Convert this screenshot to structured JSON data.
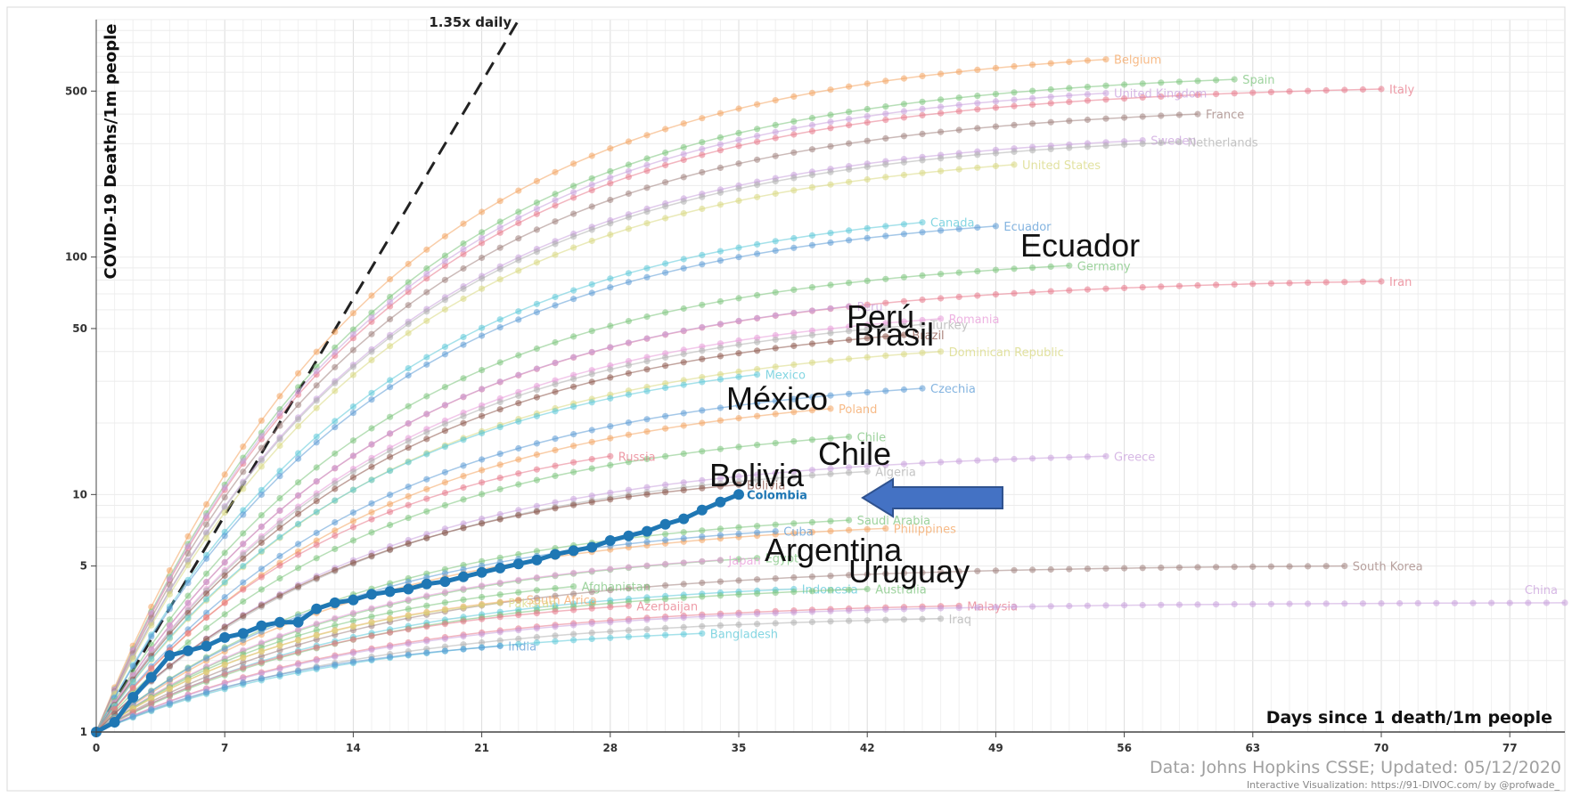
{
  "chart_data": {
    "type": "line",
    "xlabel": "Days since 1 death/1m people",
    "ylabel": "COVID-19 Deaths/1m people",
    "yscale": "log",
    "xlim": [
      0,
      80
    ],
    "ylim": [
      1,
      1000
    ],
    "xticks": [
      0,
      7,
      14,
      21,
      28,
      35,
      42,
      49,
      56,
      63,
      70,
      77
    ],
    "yticks": [
      1,
      5,
      10,
      50,
      100,
      500
    ],
    "grid": true,
    "legend": "none",
    "reference_line": {
      "label": "1.35x daily",
      "growth_rate": 1.35
    },
    "footer": {
      "source": "Data: Johns Hopkins CSSE; Updated: 05/12/2020",
      "credit": "Interactive Visualization: https://91-DIVOC.com/ by @profwade_"
    },
    "highlight": "Colombia",
    "arrow_color": "#4472c4",
    "series": [
      {
        "name": "Belgium",
        "color": "#f4a460",
        "end": [
          55,
          680
        ]
      },
      {
        "name": "Spain",
        "color": "#7cc47c",
        "end": [
          62,
          560
        ]
      },
      {
        "name": "Italy",
        "color": "#e8798a",
        "end": [
          70,
          510
        ]
      },
      {
        "name": "United Kingdom",
        "color": "#c9a0dc",
        "end": [
          55,
          490
        ]
      },
      {
        "name": "France",
        "color": "#a0827d",
        "end": [
          60,
          400
        ]
      },
      {
        "name": "Sweden",
        "color": "#c9a0dc",
        "end": [
          57,
          310
        ]
      },
      {
        "name": "Netherlands",
        "color": "#b0b0b0",
        "end": [
          59,
          305
        ]
      },
      {
        "name": "United States",
        "color": "#d8d880",
        "end": [
          50,
          245
        ]
      },
      {
        "name": "Canada",
        "color": "#5bc8d8",
        "end": [
          45,
          140
        ]
      },
      {
        "name": "Ecuador",
        "color": "#5b9bd5",
        "end": [
          49,
          135
        ]
      },
      {
        "name": "Germany",
        "color": "#7cc47c",
        "end": [
          53,
          92
        ]
      },
      {
        "name": "Iran",
        "color": "#e8798a",
        "end": [
          70,
          79
        ]
      },
      {
        "name": "Peru",
        "color": "#c9a0dc",
        "end": [
          41,
          62
        ]
      },
      {
        "name": "Romania",
        "color": "#e89ad8",
        "end": [
          46,
          55
        ]
      },
      {
        "name": "Turkey",
        "color": "#b0b0b0",
        "end": [
          45,
          52
        ]
      },
      {
        "name": "Brazil",
        "color": "#8c564b",
        "end": [
          44,
          47
        ]
      },
      {
        "name": "Dominican Republic",
        "color": "#d8d880",
        "end": [
          46,
          40
        ]
      },
      {
        "name": "Mexico",
        "color": "#5bc8d8",
        "end": [
          36,
          32
        ]
      },
      {
        "name": "Czechia",
        "color": "#5b9bd5",
        "end": [
          45,
          28
        ]
      },
      {
        "name": "Poland",
        "color": "#f4a460",
        "end": [
          40,
          23
        ]
      },
      {
        "name": "Chile",
        "color": "#7cc47c",
        "end": [
          41,
          17.5
        ]
      },
      {
        "name": "Russia",
        "color": "#e8798a",
        "end": [
          28,
          14.5
        ]
      },
      {
        "name": "Greece",
        "color": "#c9a0dc",
        "end": [
          55,
          14.5
        ]
      },
      {
        "name": "Algeria",
        "color": "#b0b0b0",
        "end": [
          42,
          12.5
        ]
      },
      {
        "name": "Bolivia",
        "color": "#8c564b",
        "end": [
          35,
          11
        ]
      },
      {
        "name": "Colombia",
        "color": "#1f77b4",
        "highlight": true,
        "x": [
          0,
          1,
          2,
          3,
          4,
          5,
          6,
          7,
          8,
          9,
          10,
          11,
          12,
          13,
          14,
          15,
          16,
          17,
          18,
          19,
          20,
          21,
          22,
          23,
          24,
          25,
          26,
          27,
          28,
          29,
          30,
          31,
          32,
          33,
          34,
          35
        ],
        "y": [
          1.0,
          1.1,
          1.4,
          1.7,
          2.1,
          2.2,
          2.3,
          2.5,
          2.6,
          2.8,
          2.9,
          2.9,
          3.3,
          3.5,
          3.6,
          3.8,
          3.9,
          4.0,
          4.2,
          4.3,
          4.5,
          4.7,
          4.9,
          5.1,
          5.3,
          5.6,
          5.8,
          6.0,
          6.4,
          6.7,
          7.0,
          7.5,
          7.9,
          8.6,
          9.3,
          10.0
        ]
      },
      {
        "name": "Saudi Arabia",
        "color": "#7cc47c",
        "end": [
          41,
          7.8
        ]
      },
      {
        "name": "Philippines",
        "color": "#f4a460",
        "end": [
          43,
          7.2
        ]
      },
      {
        "name": "Cuba",
        "color": "#5b9bd5",
        "end": [
          37,
          7.0
        ]
      },
      {
        "name": "Egypt",
        "color": "#7cc47c",
        "end": [
          36,
          5.4
        ]
      },
      {
        "name": "Japan",
        "color": "#e89ad8",
        "end": [
          34,
          5.3
        ]
      },
      {
        "name": "South Korea",
        "color": "#a0827d",
        "end": [
          68,
          5.0
        ]
      },
      {
        "name": "Afghanistan",
        "color": "#7cc47c",
        "end": [
          26,
          4.1
        ]
      },
      {
        "name": "Indonesia",
        "color": "#5bc8d8",
        "end": [
          38,
          4.0
        ]
      },
      {
        "name": "Australia",
        "color": "#7cc47c",
        "end": [
          42,
          4.0
        ]
      },
      {
        "name": "South Africa",
        "color": "#f4a460",
        "end": [
          23,
          3.6
        ]
      },
      {
        "name": "Pakistan",
        "color": "#d8d880",
        "end": [
          22,
          3.5
        ]
      },
      {
        "name": "Azerbaijan",
        "color": "#e8798a",
        "end": [
          29,
          3.4
        ]
      },
      {
        "name": "Malaysia",
        "color": "#e8798a",
        "end": [
          47,
          3.4
        ]
      },
      {
        "name": "Iraq",
        "color": "#b0b0b0",
        "end": [
          46,
          3.0
        ]
      },
      {
        "name": "China",
        "color": "#c9a0dc",
        "end": [
          80,
          3.5
        ]
      },
      {
        "name": "Bangladesh",
        "color": "#5bc8d8",
        "end": [
          33,
          2.6
        ]
      },
      {
        "name": "India",
        "color": "#5b9bd5",
        "end": [
          22,
          2.3
        ]
      }
    ]
  },
  "overlay_labels": {
    "ecuador": "Ecuador",
    "peru": "Perú",
    "brasil": "Brasil",
    "mexico": "México",
    "chile": "Chile",
    "bolivia": "Bolivia",
    "argentina": "Argentina",
    "uruguay": "Uruguay"
  }
}
